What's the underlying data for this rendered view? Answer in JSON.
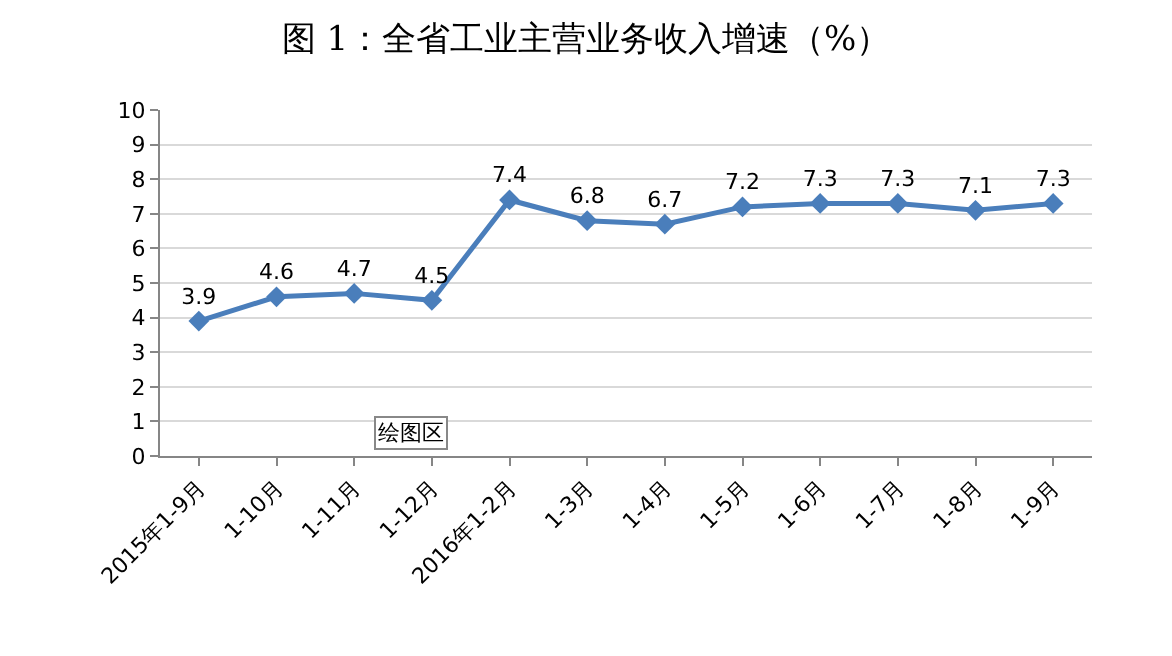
{
  "chart_data": {
    "type": "line",
    "title": "图 1：全省工业主营业务收入增速（%）",
    "categories": [
      "2015年1-9月",
      "1-10月",
      "1-11月",
      "1-12月",
      "2016年1-2月",
      "1-3月",
      "1-4月",
      "1-5月",
      "1-6月",
      "1-7月",
      "1-8月",
      "1-9月"
    ],
    "series": [
      {
        "color": "#4a7ebb",
        "values": [
          3.9,
          4.6,
          4.7,
          4.5,
          7.4,
          6.8,
          6.7,
          7.2,
          7.3,
          7.3,
          7.1,
          7.3
        ]
      }
    ],
    "ylim": [
      0,
      10
    ],
    "yticks": [
      0,
      1,
      2,
      3,
      4,
      5,
      6,
      7,
      8,
      9,
      10
    ],
    "grid": "y",
    "marker": "diamond",
    "line_style": "solid",
    "data_labels": true,
    "annotations": [
      "绘图区"
    ]
  }
}
